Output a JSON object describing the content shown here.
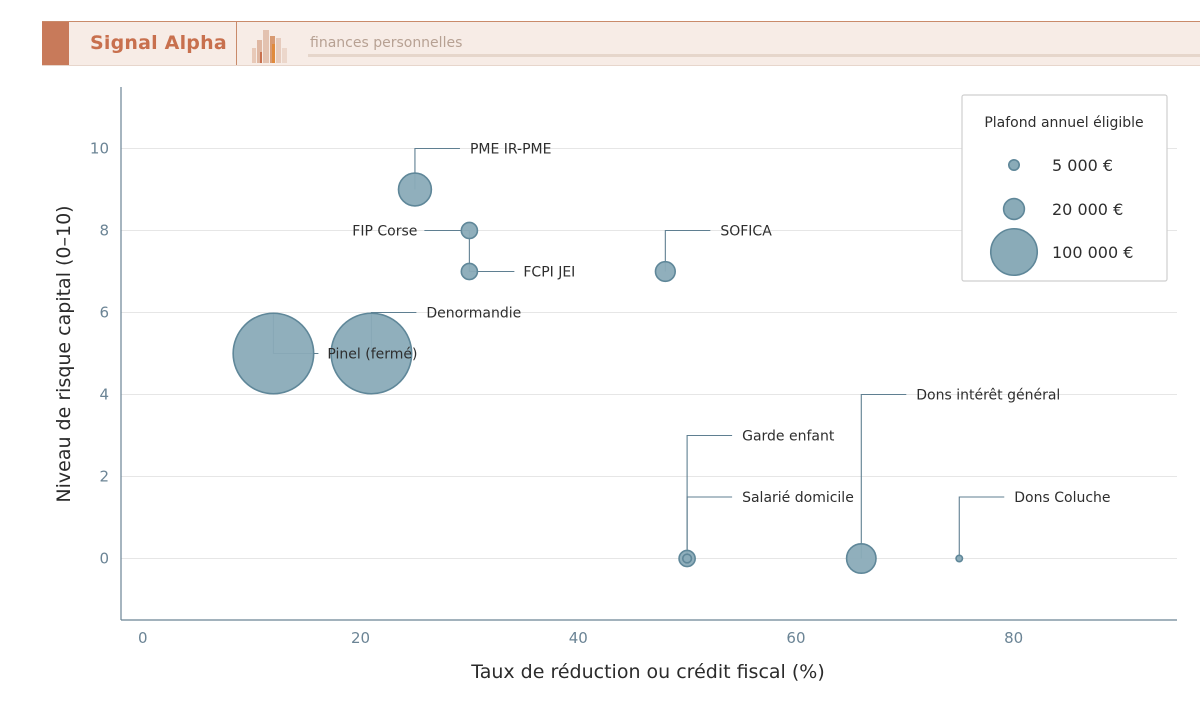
{
  "header": {
    "brand": "Signal Alpha",
    "tagline": "finances personnelles",
    "logo_icon": "city-skyline-icon",
    "brand_color": "#c8704e"
  },
  "chart_data": {
    "type": "scatter",
    "title": "",
    "xlabel": "Taux de réduction ou crédit fiscal (%)",
    "ylabel": "Niveau de risque capital (0–10)",
    "xlim": [
      -2,
      95
    ],
    "ylim": [
      -1.5,
      11.5
    ],
    "xticks": [
      0,
      20,
      40,
      60,
      80
    ],
    "yticks": [
      0,
      2,
      4,
      6,
      8,
      10
    ],
    "grid": "horizontal",
    "marker_color": "#8aabb8",
    "marker_edge": "#5f8799",
    "size_encoding": "Plafond annuel éligible",
    "points": [
      {
        "label": "PME IR-PME",
        "x": 25,
        "y": 9,
        "size": 50000,
        "label_pos": "up-right"
      },
      {
        "label": "FIP Corse",
        "x": 30,
        "y": 8,
        "size": 12000,
        "label_pos": "left"
      },
      {
        "label": "FCPI JEI",
        "x": 30,
        "y": 7,
        "size": 12000,
        "label_pos": "down-right"
      },
      {
        "label": "SOFICA",
        "x": 48,
        "y": 7,
        "size": 18000,
        "label_pos": "up-right"
      },
      {
        "label": "Denormandie",
        "x": 21,
        "y": 5,
        "size": 300000,
        "label_pos": "up-right"
      },
      {
        "label": "Pinel (fermé)",
        "x": 12,
        "y": 5,
        "size": 300000,
        "label_pos": "down-right"
      },
      {
        "label": "Dons intérêt général",
        "x": 66,
        "y": 0,
        "size": 40000,
        "label_pos": "up-right-far"
      },
      {
        "label": "Garde enfant",
        "x": 50,
        "y": 0,
        "size": 3500,
        "label_pos": "up-right-mid"
      },
      {
        "label": "Salarié domicile",
        "x": 50,
        "y": 0,
        "size": 12000,
        "label_pos": "up-right-near"
      },
      {
        "label": "Dons Coluche",
        "x": 75,
        "y": 0,
        "size": 1000,
        "label_pos": "up-right-near"
      }
    ],
    "legend": {
      "title": "Plafond annuel éligible",
      "position": "top-right",
      "entries": [
        {
          "label": "5 000 €",
          "size": 5000
        },
        {
          "label": "20 000 €",
          "size": 20000
        },
        {
          "label": "100 000 €",
          "size": 100000
        }
      ]
    }
  }
}
